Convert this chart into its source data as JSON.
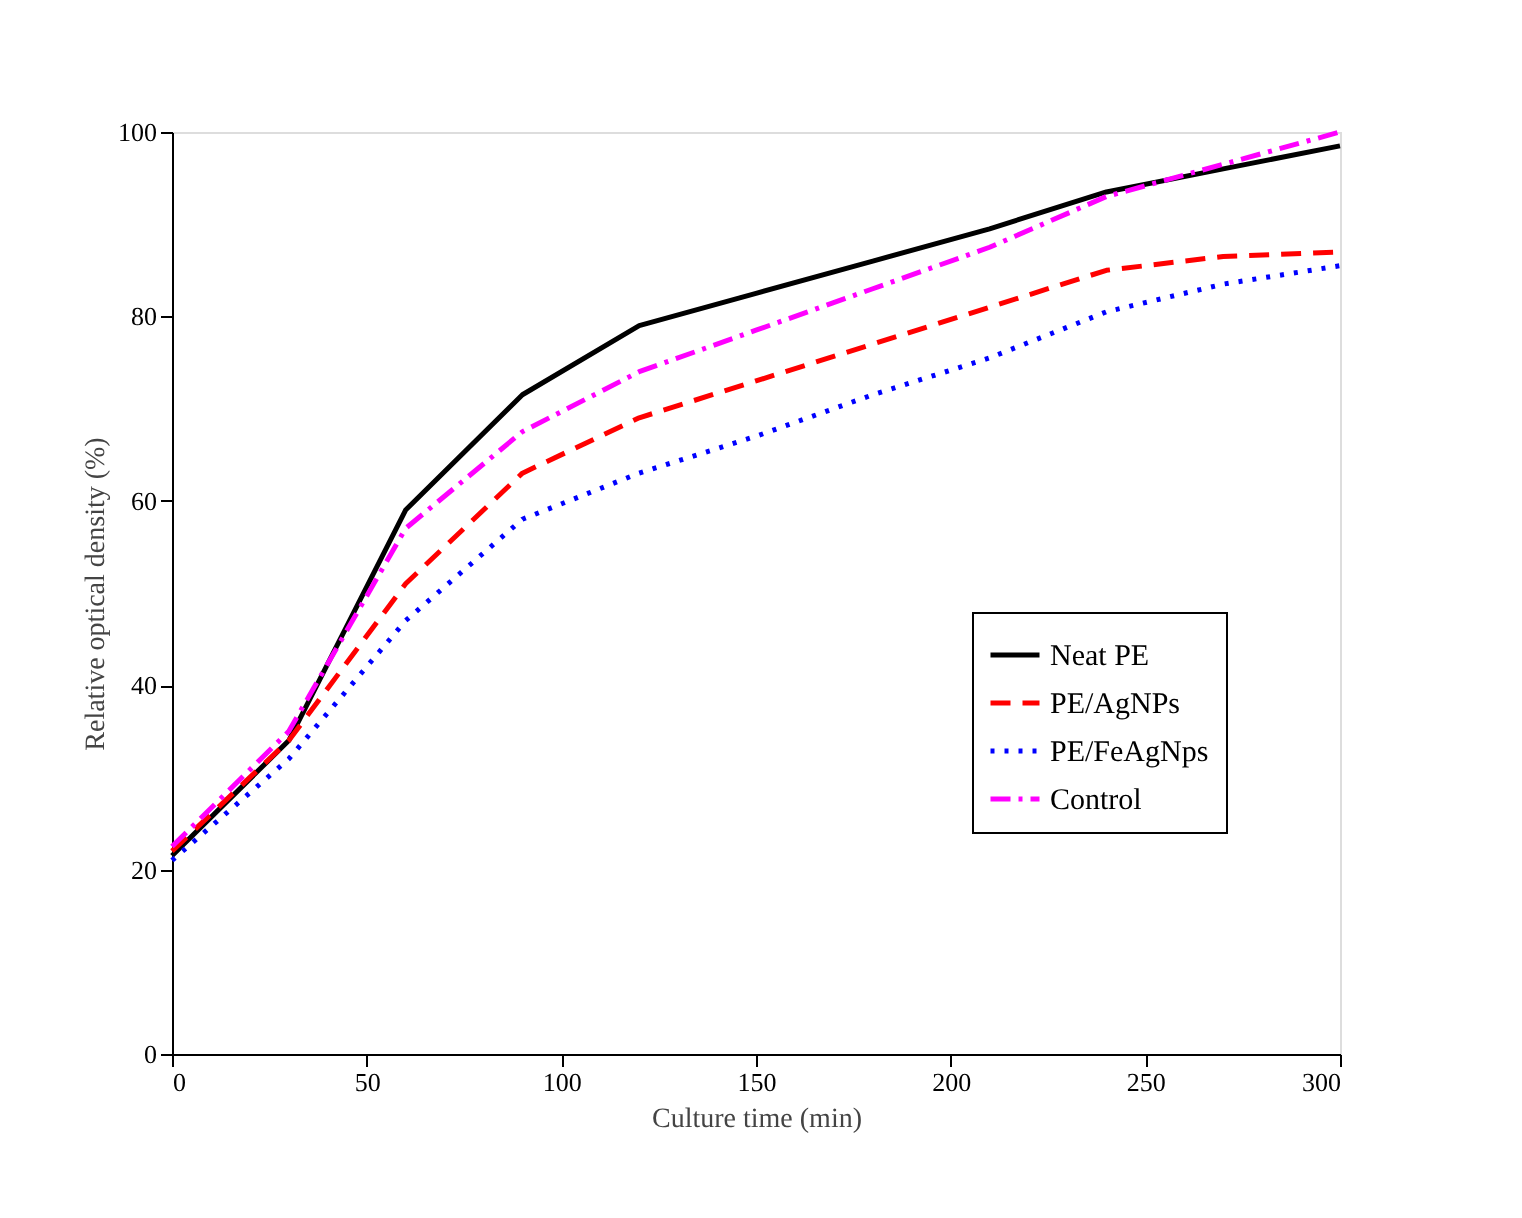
{
  "chart_data": {
    "type": "line",
    "xlabel": "Culture time (min)",
    "ylabel": "Relative optical density (%)",
    "x": [
      0,
      30,
      60,
      90,
      120,
      150,
      180,
      210,
      240,
      270,
      300
    ],
    "series": [
      {
        "name": "Neat PE",
        "color": "#000000",
        "line_style": "solid",
        "values": [
          21.5,
          34,
          59,
          71.5,
          79,
          82.5,
          86,
          89.5,
          93.5,
          96,
          98.5
        ]
      },
      {
        "name": "PE/AgNPs",
        "color": "#ff0000",
        "line_style": "dashed",
        "values": [
          22,
          34,
          51,
          63,
          69,
          73,
          77,
          81,
          85,
          86.5,
          87
        ]
      },
      {
        "name": "PE/FeAgNps",
        "color": "#0000ff",
        "line_style": "dotted",
        "values": [
          21,
          32,
          47,
          58,
          63,
          67,
          71.5,
          75.5,
          80.5,
          83.5,
          85.5
        ]
      },
      {
        "name": "Control",
        "color": "#ff00ff",
        "line_style": "dashdot",
        "values": [
          22.5,
          35,
          57,
          67.5,
          74,
          78.5,
          83,
          87.5,
          93,
          96.5,
          100
        ]
      }
    ],
    "xlim": [
      0,
      300
    ],
    "xticks": [
      0,
      50,
      100,
      150,
      200,
      250,
      300
    ],
    "ylim": [
      0,
      100
    ],
    "yticks": [
      0,
      20,
      40,
      60,
      80,
      100
    ],
    "grid": false,
    "legend": "bottom right",
    "marker": "none"
  }
}
